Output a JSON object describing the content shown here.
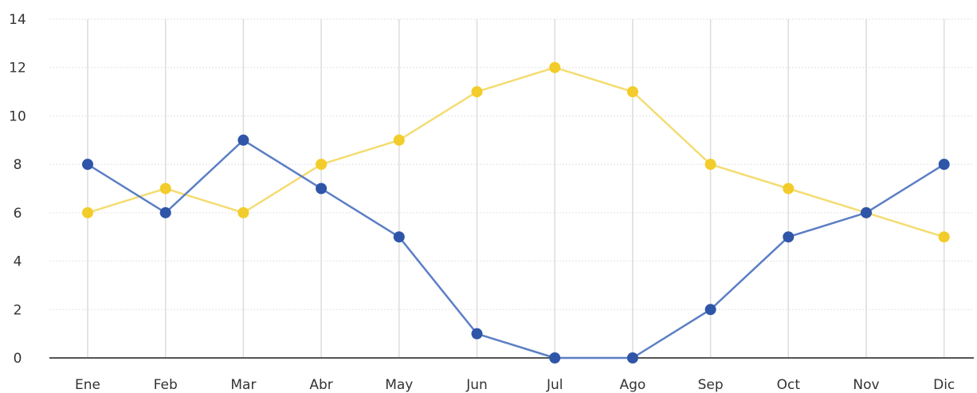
{
  "chart_data": {
    "type": "line",
    "categories": [
      "Ene",
      "Feb",
      "Mar",
      "Abr",
      "May",
      "Jun",
      "Jul",
      "Ago",
      "Sep",
      "Oct",
      "Nov",
      "Dic"
    ],
    "series": [
      {
        "color": "#5b7fc4",
        "marker_color": "#2f55a8",
        "values": [
          8,
          6,
          9,
          7,
          5,
          1,
          0,
          0,
          2,
          5,
          6,
          8
        ]
      },
      {
        "color": "#f4dc72",
        "marker_color": "#f2cc2a",
        "values": [
          6,
          7,
          6,
          8,
          9,
          11,
          12,
          11,
          8,
          7,
          6,
          5
        ]
      }
    ],
    "y_ticks": [
      "0",
      "2",
      "4",
      "6",
      "8",
      "10",
      "12",
      "14"
    ],
    "ylim": [
      0,
      14
    ],
    "grid": true,
    "title": "",
    "xlabel": "",
    "ylabel": ""
  }
}
